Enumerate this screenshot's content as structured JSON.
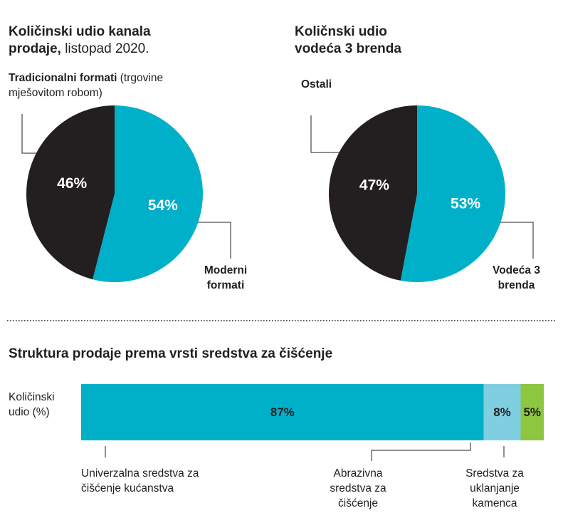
{
  "colors": {
    "dark": "#231f20",
    "teal": "#00b0c9",
    "light_blue": "#7fcfe0",
    "green": "#8dc63f",
    "white": "#ffffff"
  },
  "chart_data": [
    {
      "type": "pie",
      "title_bold": "Količinski udio kanala prodaje,",
      "title_regular": "listopad 2020.",
      "slices": [
        {
          "label_bold": "Tradicionalni formati",
          "label_regular": "(trgovine mješovitom robom)",
          "value": 46,
          "value_label": "46%",
          "color": "#231f20"
        },
        {
          "label_bold": "Moderni formati",
          "label_regular": "",
          "value": 54,
          "value_label": "54%",
          "color": "#00b0c9"
        }
      ]
    },
    {
      "type": "pie",
      "title_bold": "Količnski udio vodeća 3 brenda",
      "slices": [
        {
          "label_bold": "Ostali",
          "value": 47,
          "value_label": "47%",
          "color": "#231f20"
        },
        {
          "label_bold": "Vodeća 3 brenda",
          "value": 53,
          "value_label": "53%",
          "color": "#00b0c9"
        }
      ]
    },
    {
      "type": "bar",
      "orientation": "horizontal-stacked",
      "title": "Struktura prodaje prema vrsti sredstva za čišćenje",
      "ylabel": "Količinski udio (%)",
      "series": [
        {
          "name": "Univerzalna sredstva za čišćenje kućanstva",
          "value": 87,
          "value_label": "87%",
          "color": "#00b0c9"
        },
        {
          "name": "Abrazivna sredstva za čišćenje",
          "value": 8,
          "value_label": "8%",
          "color": "#7fcfe0"
        },
        {
          "name": "Sredstva za uklanjanje kamenca",
          "value": 5,
          "value_label": "5%",
          "color": "#8dc63f"
        }
      ]
    }
  ]
}
